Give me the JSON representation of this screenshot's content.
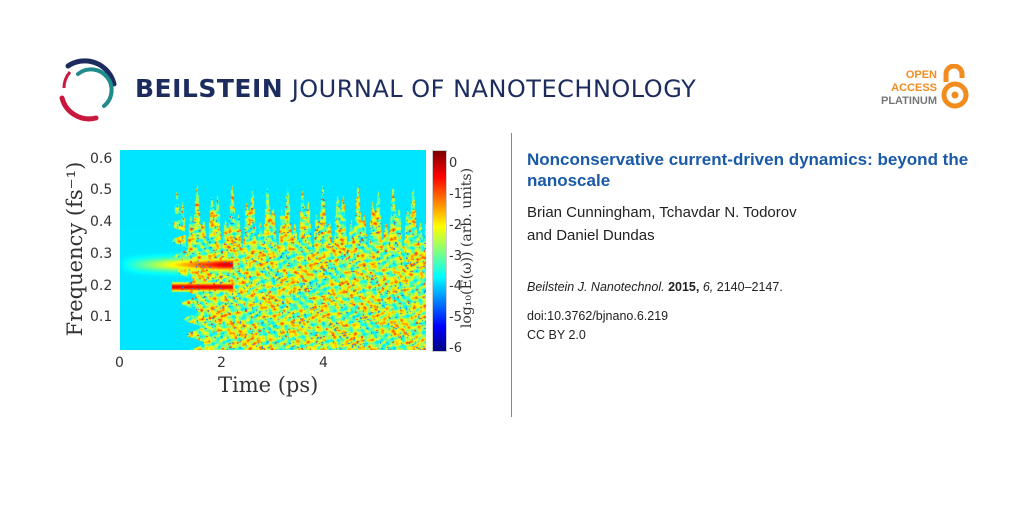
{
  "journal": {
    "name_bold": "BEILSTEIN",
    "name_light": "JOURNAL OF NANOTECHNOLOGY"
  },
  "open_access": {
    "line1": "OPEN",
    "line2": "ACCESS",
    "line3": "PLATINUM",
    "color": "#f28c1e"
  },
  "article": {
    "title": "Nonconservative current-driven dynamics: beyond the nanoscale",
    "authors_line1": "Brian Cunningham, Tchavdar N. Todorov",
    "authors_line2": "and Daniel Dundas",
    "citation": {
      "journal": "Beilstein J. Nanotechnol.",
      "year": "2015,",
      "volume": "6,",
      "pages": "2140–2147."
    },
    "doi": "doi:10.3762/bjnano.6.219",
    "license": "CC BY 2.0"
  },
  "chart_data": {
    "type": "heatmap",
    "xlabel": "Time (ps)",
    "ylabel": "Frequency (fs⁻¹)",
    "colorbar_label": "log₁₀(E(ω)) (arb. units)",
    "xlim": [
      0,
      6
    ],
    "ylim": [
      0,
      0.63
    ],
    "xticks": [
      "0",
      "2",
      "4"
    ],
    "yticks": [
      "0.1",
      "0.2",
      "0.3",
      "0.4",
      "0.5",
      "0.6"
    ],
    "colorbar_ticks": [
      "0",
      "-1",
      "-2",
      "-3",
      "-4",
      "-5",
      "-6"
    ],
    "colorbar_range": [
      -6,
      0.5
    ],
    "colormap": "jet"
  }
}
